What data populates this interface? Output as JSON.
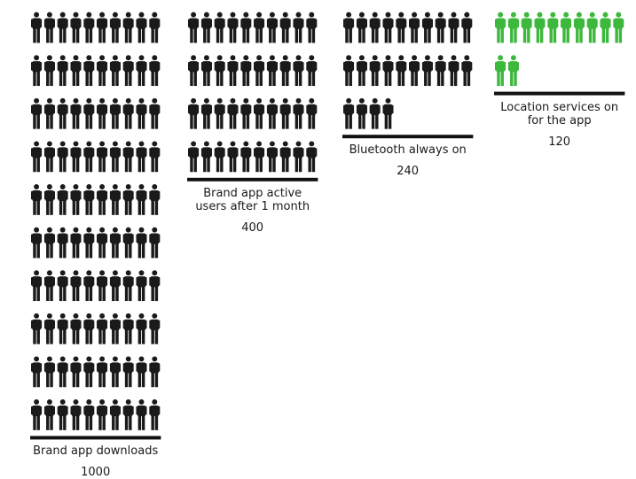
{
  "chart_data": {
    "type": "pictograph",
    "unit": "person icon",
    "series": [
      {
        "label": "Brand app downloads",
        "value": 1000,
        "color": "#1a1a1a"
      },
      {
        "label": "Brand app active users after 1 month",
        "value": 400,
        "color": "#1a1a1a"
      },
      {
        "label": "Bluetooth always on",
        "value": 240,
        "color": "#1a1a1a"
      },
      {
        "label": "Location services on for the app",
        "value": 120,
        "color": "#3cb83c"
      }
    ],
    "colors": {
      "default": "#1a1a1a",
      "highlight": "#3cb83c",
      "bar": "#111111"
    }
  }
}
